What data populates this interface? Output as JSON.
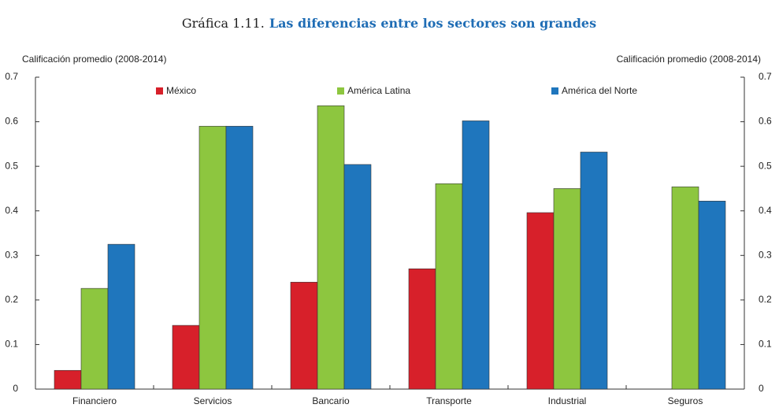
{
  "chart_data": {
    "type": "bar",
    "title_number": "Gráfica 1.11.",
    "title": "Las diferencias entre los sectores son grandes",
    "ylabel": "Calificación promedio (2008-2014)",
    "y2label": "Calificación promedio (2008-2014)",
    "categories": [
      "Financiero",
      "Servicios",
      "Bancario",
      "Transporte",
      "Industrial",
      "Seguros"
    ],
    "series": [
      {
        "name": "México",
        "color": "#d7202a",
        "values": [
          0.042,
          0.143,
          0.24,
          0.27,
          0.396,
          null
        ]
      },
      {
        "name": "América Latina",
        "color": "#8dc63f",
        "values": [
          0.226,
          0.59,
          0.636,
          0.461,
          0.45,
          0.454
        ]
      },
      {
        "name": "América del Norte",
        "color": "#1f76bd",
        "values": [
          0.325,
          0.59,
          0.504,
          0.602,
          0.532,
          0.422
        ]
      }
    ],
    "ylim": [
      0,
      0.7
    ],
    "yticks": [
      0,
      0.1,
      0.2,
      0.3,
      0.4,
      0.5,
      0.6,
      0.7
    ],
    "y2lim": [
      0,
      0.7
    ],
    "y2ticks": [
      0,
      0.1,
      0.2,
      0.3,
      0.4,
      0.5,
      0.6,
      0.7
    ],
    "legend": "top",
    "grid": false
  }
}
